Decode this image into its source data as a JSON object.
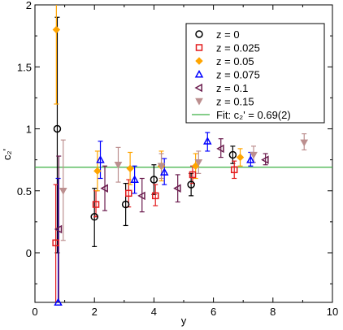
{
  "chart_data": {
    "type": "scatter",
    "title": "",
    "xlabel": "y",
    "ylabel": "c₂'",
    "xlim": [
      0,
      10
    ],
    "ylim": [
      -0.4,
      2.0
    ],
    "x_ticks": [
      0,
      2,
      4,
      6,
      8,
      10
    ],
    "y_ticks": [
      0,
      0.5,
      1,
      1.5,
      2
    ],
    "x_tick_labels": [
      "0",
      "2",
      "4",
      "6",
      "8",
      "10"
    ],
    "y_tick_labels": [
      "0",
      "0.5",
      "1",
      "1.5",
      "2"
    ],
    "grid": false,
    "legend_position": "top-right",
    "series": [
      {
        "name": "z = 0",
        "color": "#000000",
        "marker": "circle-open",
        "points": [
          {
            "x": 0.75,
            "y": 1.0,
            "lo": 0.0,
            "hi": 1.9
          },
          {
            "x": 2.0,
            "y": 0.29,
            "lo": 0.05,
            "hi": 0.52
          },
          {
            "x": 3.05,
            "y": 0.39,
            "lo": 0.22,
            "hi": 0.56
          },
          {
            "x": 4.0,
            "y": 0.59,
            "lo": 0.47,
            "hi": 0.71
          },
          {
            "x": 5.25,
            "y": 0.55,
            "lo": 0.46,
            "hi": 0.64
          },
          {
            "x": 6.65,
            "y": 0.79,
            "lo": 0.72,
            "hi": 0.86
          }
        ]
      },
      {
        "name": "z = 0.025",
        "color": "#e31a1c",
        "marker": "square-open",
        "points": [
          {
            "x": 0.7,
            "y": 0.08,
            "lo": -0.4,
            "hi": 0.55
          },
          {
            "x": 2.05,
            "y": 0.39,
            "lo": 0.29,
            "hi": 0.5
          },
          {
            "x": 3.15,
            "y": 0.48,
            "lo": 0.37,
            "hi": 0.59
          },
          {
            "x": 4.05,
            "y": 0.46,
            "lo": 0.38,
            "hi": 0.55
          },
          {
            "x": 5.3,
            "y": 0.63,
            "lo": 0.56,
            "hi": 0.7
          },
          {
            "x": 6.7,
            "y": 0.67,
            "lo": 0.6,
            "hi": 0.74
          }
        ]
      },
      {
        "name": "z = 0.05",
        "color": "#ffa500",
        "marker": "diamond",
        "points": [
          {
            "x": 0.72,
            "y": 1.8,
            "lo": 1.2,
            "hi": 2.0
          },
          {
            "x": 2.1,
            "y": 0.66,
            "lo": 0.5,
            "hi": 0.82
          },
          {
            "x": 3.2,
            "y": 0.68,
            "lo": 0.55,
            "hi": 0.81
          },
          {
            "x": 4.25,
            "y": 0.7,
            "lo": 0.58,
            "hi": 0.82
          },
          {
            "x": 5.4,
            "y": 0.7,
            "lo": 0.6,
            "hi": 0.8
          },
          {
            "x": 6.9,
            "y": 0.77,
            "lo": 0.7,
            "hi": 0.84
          }
        ]
      },
      {
        "name": "z = 0.075",
        "color": "#0000ff",
        "marker": "triangle-up-open",
        "points": [
          {
            "x": 0.78,
            "y": -0.4,
            "lo": -0.4,
            "hi": 0.6
          },
          {
            "x": 2.2,
            "y": 0.75,
            "lo": 0.6,
            "hi": 0.9
          },
          {
            "x": 3.35,
            "y": 0.59,
            "lo": 0.48,
            "hi": 0.7
          },
          {
            "x": 4.35,
            "y": 0.65,
            "lo": 0.55,
            "hi": 0.76
          },
          {
            "x": 5.8,
            "y": 0.9,
            "lo": 0.82,
            "hi": 0.97
          },
          {
            "x": 7.25,
            "y": 0.75,
            "lo": 0.7,
            "hi": 0.81
          }
        ]
      },
      {
        "name": "z = 0.1",
        "color": "#6a1b4d",
        "marker": "triangle-left-open",
        "points": [
          {
            "x": 0.8,
            "y": 0.19,
            "lo": -0.4,
            "hi": 0.78
          },
          {
            "x": 2.35,
            "y": 0.52,
            "lo": 0.34,
            "hi": 0.7
          },
          {
            "x": 3.6,
            "y": 0.46,
            "lo": 0.33,
            "hi": 0.6
          },
          {
            "x": 4.8,
            "y": 0.52,
            "lo": 0.41,
            "hi": 0.63
          },
          {
            "x": 6.25,
            "y": 0.84,
            "lo": 0.77,
            "hi": 0.92
          },
          {
            "x": 7.75,
            "y": 0.75,
            "lo": 0.71,
            "hi": 0.8
          }
        ]
      },
      {
        "name": "z = 0.15",
        "color": "#bc8f8f",
        "marker": "triangle-down",
        "points": [
          {
            "x": 0.95,
            "y": 0.5,
            "lo": 0.1,
            "hi": 0.91
          },
          {
            "x": 2.8,
            "y": 0.71,
            "lo": 0.57,
            "hi": 0.85
          },
          {
            "x": 4.25,
            "y": 0.7,
            "lo": 0.6,
            "hi": 0.8
          },
          {
            "x": 5.5,
            "y": 0.73,
            "lo": 0.64,
            "hi": 0.82
          },
          {
            "x": 7.35,
            "y": 0.79,
            "lo": 0.73,
            "hi": 0.86
          },
          {
            "x": 9.05,
            "y": 0.89,
            "lo": 0.83,
            "hi": 0.96
          }
        ]
      }
    ],
    "fit": {
      "name": "Fit: c₂' = 0.69(2)",
      "value": 0.69,
      "color": "#3cb043"
    }
  }
}
